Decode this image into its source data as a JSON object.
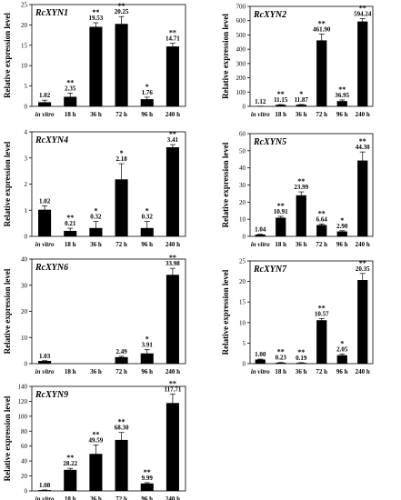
{
  "chart_data": [
    {
      "type": "bar",
      "title": "RcXYN1",
      "ylabel": "Relative expression level",
      "categories": [
        "in vitro",
        "18 h",
        "36 h",
        "72 h",
        "96 h",
        "240 h"
      ],
      "values": [
        1.02,
        2.35,
        19.53,
        20.25,
        1.76,
        14.71
      ],
      "errors": [
        0.5,
        0.9,
        1.0,
        1.8,
        0.5,
        0.8
      ],
      "value_labels": [
        "1.02",
        "2.35",
        "19.53",
        "20.25",
        "1.76",
        "14.71"
      ],
      "significance": [
        "",
        "**",
        "**",
        "**",
        "*",
        "**"
      ],
      "ylim": [
        0,
        25
      ],
      "yticks": [
        0,
        5,
        10,
        15,
        20,
        25
      ]
    },
    {
      "type": "bar",
      "title": "RcXYN2",
      "ylabel": "Relative expression level",
      "categories": [
        "in vitro",
        "18 h",
        "36 h",
        "72 h",
        "96 h",
        "240 h"
      ],
      "values": [
        1.12,
        11.15,
        11.87,
        461.9,
        36.95,
        594.24
      ],
      "errors": [
        0.3,
        1.5,
        1.5,
        45,
        8,
        20
      ],
      "value_labels": [
        "1.12",
        "11.15",
        "11.87",
        "461.90",
        "36.95",
        "594.24"
      ],
      "significance": [
        "",
        "**",
        "*",
        "**",
        "**",
        "**"
      ],
      "ylim": [
        0,
        700
      ],
      "yticks": [
        0,
        100,
        200,
        300,
        400,
        500,
        600,
        700
      ]
    },
    {
      "type": "bar",
      "title": "RcXYN4",
      "ylabel": "Relative expression level",
      "categories": [
        "in vitro",
        "18 h",
        "36 h",
        "72 h",
        "96 h",
        "240 h"
      ],
      "values": [
        1.02,
        0.21,
        0.32,
        2.18,
        0.32,
        3.41
      ],
      "errors": [
        0.15,
        0.1,
        0.25,
        0.6,
        0.25,
        0.1
      ],
      "value_labels": [
        "1.02",
        "0.21",
        "0.32",
        "2.18",
        "0.32",
        "3.41"
      ],
      "significance": [
        "",
        "**",
        "*",
        "*",
        "*",
        "**"
      ],
      "ylim": [
        0,
        4
      ],
      "yticks": [
        0,
        1,
        2,
        3,
        4
      ]
    },
    {
      "type": "bar",
      "title": "RcXYN5",
      "ylabel": "Relative expression level",
      "categories": [
        "in vitro",
        "18 h",
        "36 h",
        "72 h",
        "96 h",
        "240 h"
      ],
      "values": [
        1.04,
        10.91,
        23.99,
        6.64,
        2.9,
        44.3
      ],
      "errors": [
        0.2,
        0.8,
        2.0,
        0.6,
        0.4,
        5.0
      ],
      "value_labels": [
        "1.04",
        "10.91",
        "23.99",
        "6.64",
        "2.90",
        "44.30"
      ],
      "significance": [
        "",
        "**",
        "**",
        "**",
        "*",
        "**"
      ],
      "ylim": [
        0,
        60
      ],
      "yticks": [
        0,
        10,
        20,
        30,
        40,
        50,
        60
      ]
    },
    {
      "type": "bar",
      "title": "RcXYN6",
      "ylabel": "Relative expression level",
      "categories": [
        "in vitro",
        "18 h",
        "36 h",
        "72 h",
        "96 h",
        "240 h"
      ],
      "values": [
        1.03,
        0,
        0,
        2.49,
        3.91,
        33.98
      ],
      "errors": [
        0.1,
        0,
        0,
        0.3,
        1.4,
        2.5
      ],
      "value_labels": [
        "1.03",
        "",
        "",
        "2.49",
        "3.91",
        "33.98"
      ],
      "significance": [
        "",
        "",
        "",
        "",
        "*",
        "**"
      ],
      "ylim": [
        0,
        40
      ],
      "yticks": [
        0,
        10,
        20,
        30,
        40
      ]
    },
    {
      "type": "bar",
      "title": "RcXYN7",
      "ylabel": "Relative expression level",
      "categories": [
        "in vitro",
        "18 h",
        "36 h",
        "72 h",
        "96 h",
        "240 h"
      ],
      "values": [
        1.0,
        0.23,
        0.19,
        10.57,
        2.05,
        20.35
      ],
      "errors": [
        0.1,
        0.05,
        0.05,
        0.4,
        0.3,
        1.6
      ],
      "value_labels": [
        "1.00",
        "0.23",
        "0.19",
        "10.57",
        "2.05",
        "20.35"
      ],
      "significance": [
        "",
        "**",
        "**",
        "**",
        "*",
        "**"
      ],
      "ylim": [
        0,
        25
      ],
      "yticks": [
        0,
        5,
        10,
        15,
        20,
        25
      ]
    },
    {
      "type": "bar",
      "title": "RcXYN9",
      "ylabel": "Relative expression level",
      "categories": [
        "in vitro",
        "18 h",
        "36 h",
        "72 h",
        "96 h",
        "240 h"
      ],
      "values": [
        1.08,
        28.22,
        49.59,
        68.3,
        9.99,
        117.71
      ],
      "errors": [
        0.2,
        2.0,
        12.0,
        10.0,
        1.0,
        12.0
      ],
      "value_labels": [
        "1.08",
        "28.22",
        "49.59",
        "68.30",
        "9.99",
        "117.71"
      ],
      "significance": [
        "",
        "**",
        "**",
        "**",
        "**",
        "**"
      ],
      "ylim": [
        0,
        140
      ],
      "yticks": [
        0,
        20,
        40,
        60,
        80,
        100,
        120,
        140
      ]
    }
  ]
}
